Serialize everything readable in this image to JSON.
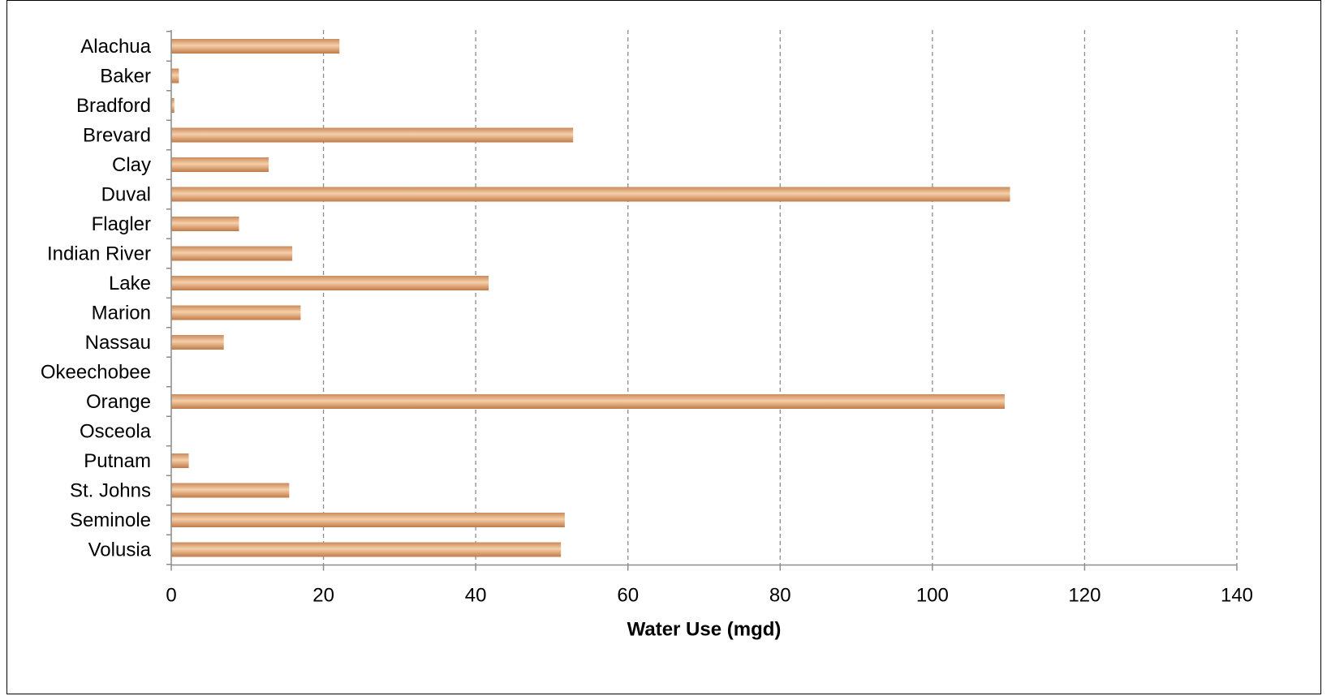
{
  "chart_data": {
    "type": "bar",
    "orientation": "horizontal",
    "categories": [
      "Alachua",
      "Baker",
      "Bradford",
      "Brevard",
      "Clay",
      "Duval",
      "Flagler",
      "Indian River",
      "Lake",
      "Marion",
      "Nassau",
      "Okeechobee",
      "Orange",
      "Osceola",
      "Putnam",
      "St. Johns",
      "Seminole",
      "Volusia"
    ],
    "values": [
      22.1,
      1.0,
      0.4,
      52.8,
      12.8,
      110.2,
      8.9,
      15.9,
      41.7,
      17.0,
      6.9,
      0,
      109.5,
      0,
      2.3,
      15.5,
      51.7,
      51.2
    ],
    "title": "",
    "xlabel": "Water Use (mgd)",
    "ylabel": "",
    "xlim": [
      0,
      140
    ],
    "xticks": [
      "0",
      "20",
      "40",
      "60",
      "80",
      "100",
      "120",
      "140"
    ],
    "grid": "vertical dashed",
    "legend": "none",
    "bar_color": "#E0A070",
    "bar_highlight": "#F6CFA8",
    "bar_shadow": "#C07A48"
  }
}
